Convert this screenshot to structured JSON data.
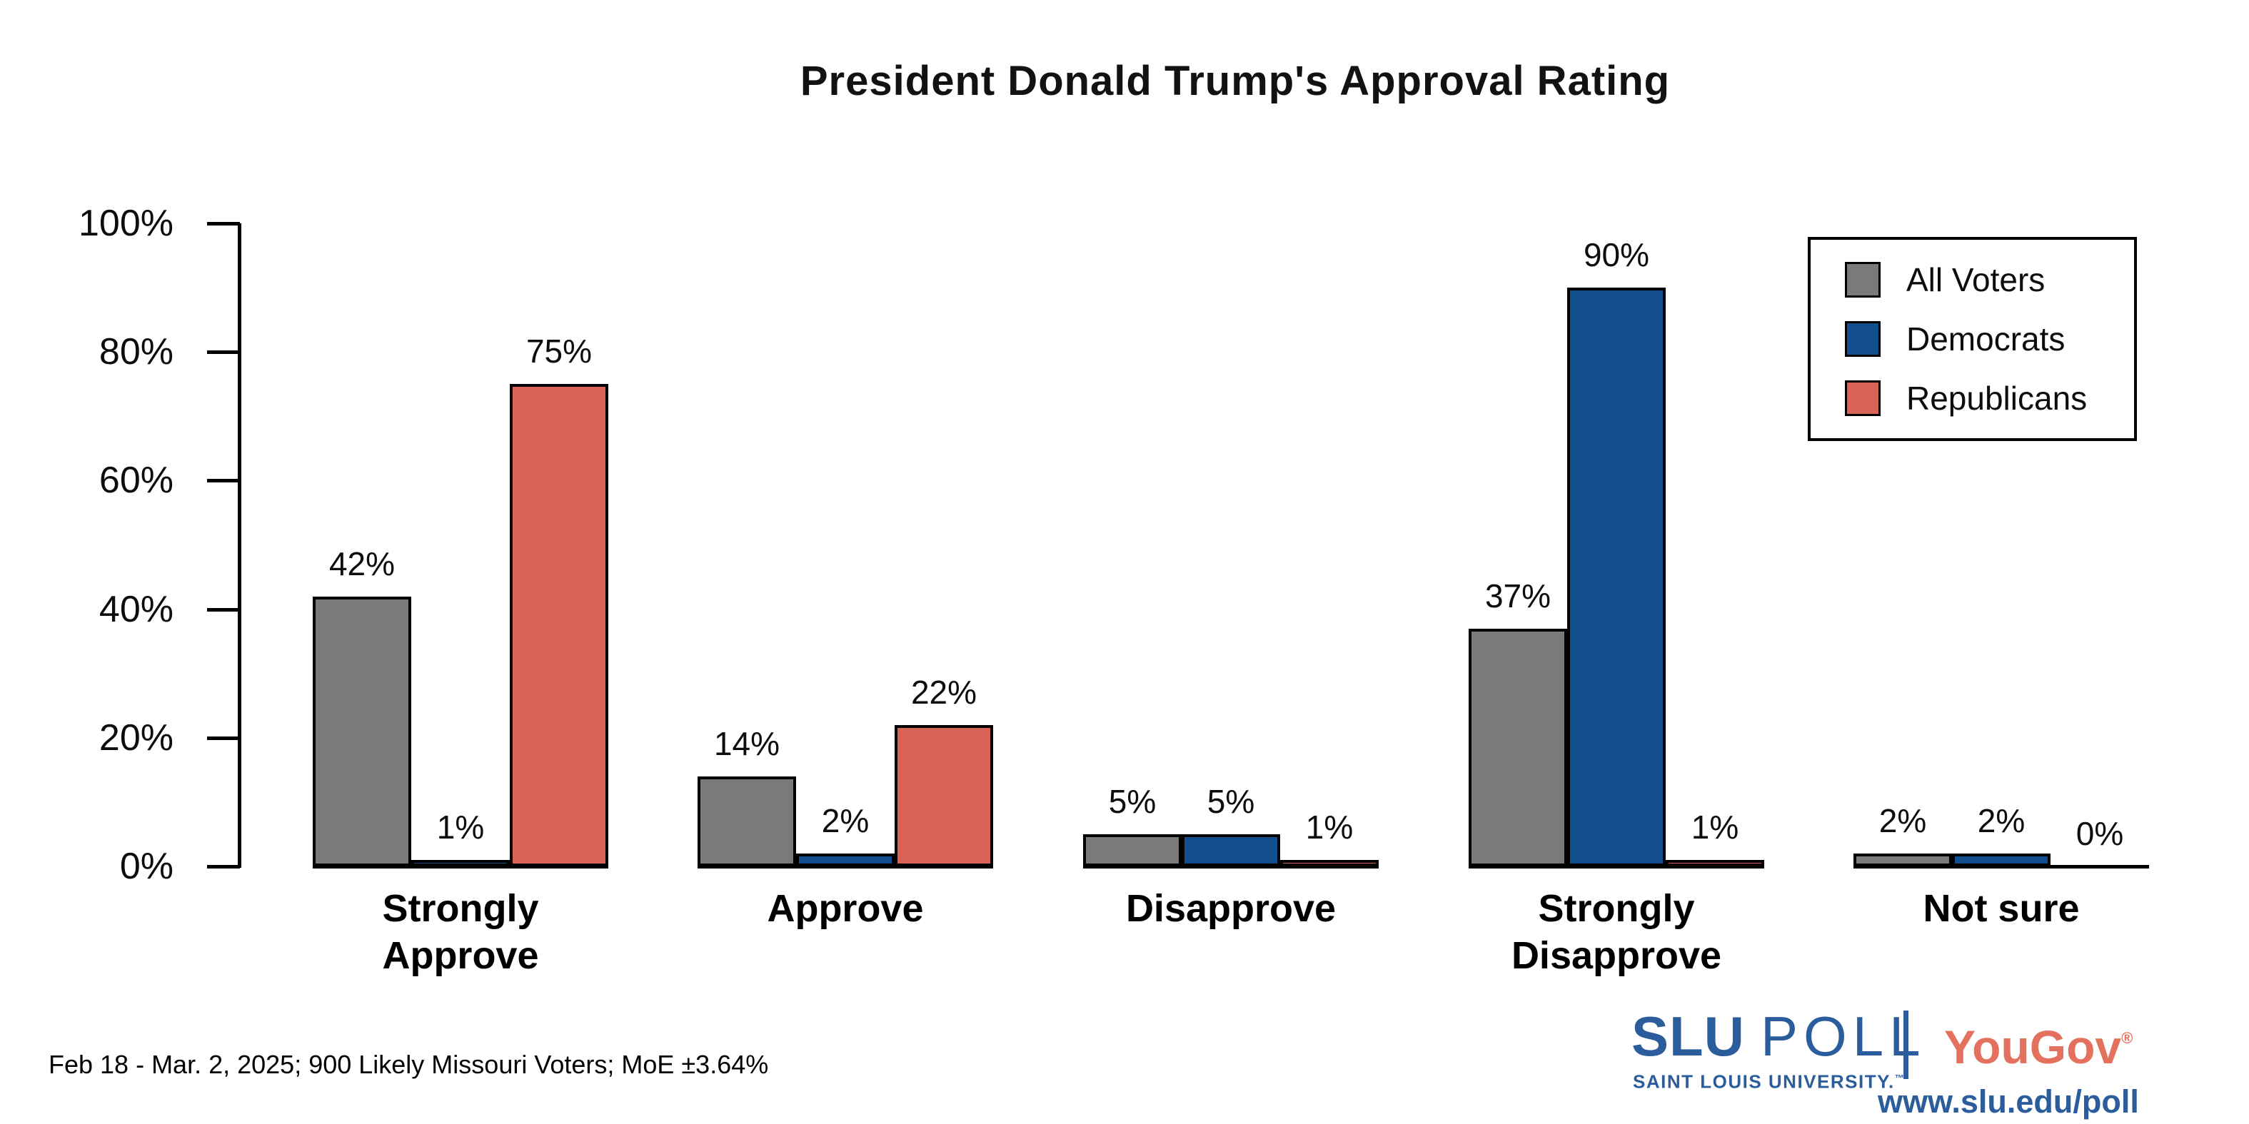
{
  "page": {
    "background": "#ffffff"
  },
  "chart_data": {
    "type": "bar",
    "title": "President Donald Trump's Approval Rating",
    "categories": [
      "Strongly\nApprove",
      "Approve",
      "Disapprove",
      "Strongly\nDisapprove",
      "Not sure"
    ],
    "series": [
      {
        "name": "All Voters",
        "color": "#7A7A7A",
        "values": [
          42,
          14,
          5,
          37,
          2
        ]
      },
      {
        "name": "Democrats",
        "color": "#134E8C",
        "values": [
          1,
          2,
          5,
          90,
          2
        ]
      },
      {
        "name": "Republicans",
        "color": "#D96356",
        "values": [
          75,
          22,
          1,
          1,
          0
        ]
      }
    ],
    "value_suffix": "%",
    "ylim": [
      0,
      100
    ],
    "yticks": [
      0,
      20,
      40,
      60,
      80,
      100
    ],
    "ytick_labels": [
      "0%",
      "20%",
      "40%",
      "60%",
      "80%",
      "100%"
    ],
    "legend_position": "top-right",
    "grid": false,
    "bar_outline_color": "#000000"
  },
  "footer": {
    "note": "Feb 18 - Mar. 2, 2025; 900 Likely Missouri Voters; MoE ±3.64%"
  },
  "branding": {
    "slu": "SLU",
    "poll": "POLL",
    "slu_sub": "SAINT LOUIS UNIVERSITY.",
    "slu_tm": "™",
    "yougov": "YouGov",
    "yougov_reg": "®",
    "url": "www.slu.edu/poll",
    "slu_blue": "#2B5C9B",
    "yougov_coral": "#E4705E"
  }
}
